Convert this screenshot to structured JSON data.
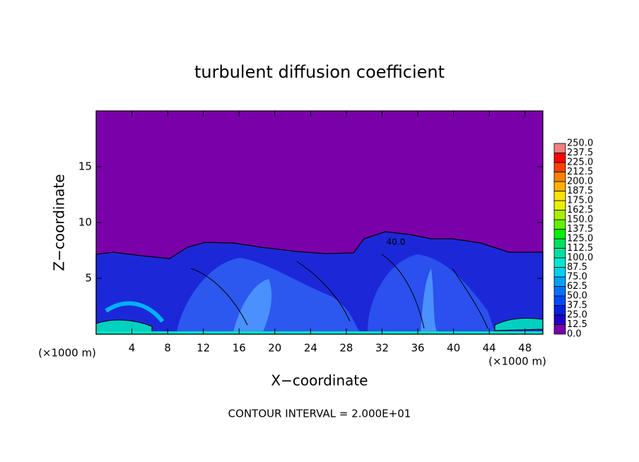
{
  "chart_data": {
    "type": "contour",
    "title": "turbulent diffusion coefficient",
    "x_label": "X−coordinate",
    "y_label": "Z−coordinate",
    "x_unit_label": "(×1000 m)",
    "x_unit_label_right": "(×1000 m)",
    "footnote": "CONTOUR INTERVAL = 2.000E+01",
    "annotations": [
      "40.0"
    ],
    "xlim": [
      0,
      50
    ],
    "xticks": [
      4,
      8,
      12,
      16,
      20,
      24,
      28,
      32,
      36,
      40,
      44,
      48
    ],
    "ylim": [
      0,
      20
    ],
    "yticks": [
      5,
      10,
      15
    ],
    "colorbar": {
      "levels": [
        {
          "value": 0,
          "label": "0.0"
        },
        12.5,
        {
          "value": 25,
          "label": "25.0"
        },
        37.5,
        {
          "value": 50,
          "label": "50.0"
        },
        62.5,
        {
          "value": 75,
          "label": "75.0"
        },
        87.5,
        {
          "value": 100,
          "label": "100.0"
        },
        112.5,
        {
          "value": 125,
          "label": "125.0"
        },
        137.5,
        {
          "value": 150,
          "label": "150.0"
        },
        162.5,
        {
          "value": 175,
          "label": "175.0"
        },
        187.5,
        {
          "value": 200,
          "label": "200.0"
        },
        212.5,
        {
          "value": 225,
          "label": "225.0"
        },
        237.5,
        {
          "value": 250,
          "label": "250.0"
        }
      ],
      "colors": [
        "#7a00aa",
        "#2000c8",
        "#0020e0",
        "#0048ff",
        "#0070ff",
        "#00a0ff",
        "#00d0f0",
        "#00e8d0",
        "#00e0a0",
        "#00e060",
        "#00f000",
        "#60f000",
        "#a8f000",
        "#e8f000",
        "#ffe000",
        "#ffb000",
        "#ff8000",
        "#ff4000",
        "#ff0000",
        "#f08080"
      ]
    }
  }
}
